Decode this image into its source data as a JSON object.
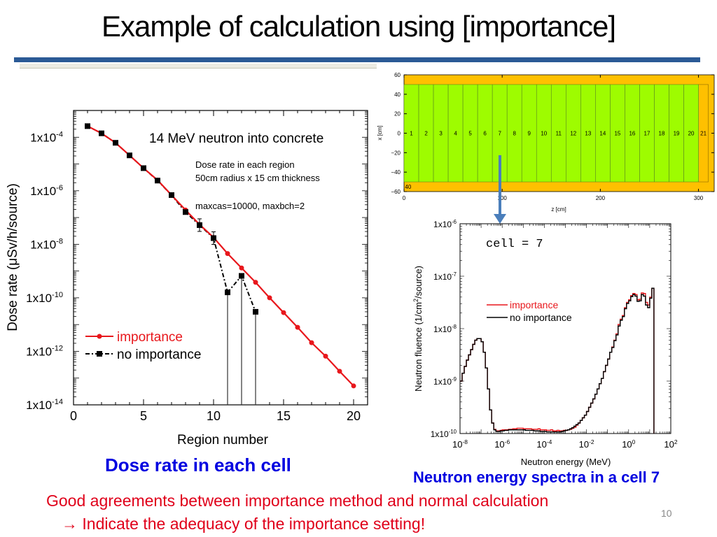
{
  "slide": {
    "title": "Example of calculation using [importance]",
    "page_number": "10",
    "caption_left": "Dose rate in each cell",
    "caption_right": "Neutron energy spectra in a cell 7",
    "conclusion_line1": "Good agreements between importance method and normal calculation",
    "conclusion_line2": "→ Indicate the adequacy of the importance setting!",
    "colors": {
      "title_rule": "#2b5a96",
      "caption": "#0000e0",
      "conclusion": "#e0001a",
      "importance": "#e8171c",
      "no_importance": "#000000"
    }
  },
  "chart_data": [
    {
      "id": "dose",
      "type": "line",
      "title": "14 MeV neutron into concrete",
      "annotations": [
        "Dose rate in each region",
        "50cm radius x 15 cm thickness",
        "maxcas=10000, maxbch=2"
      ],
      "xlabel": "Region number",
      "ylabel": "Dose rate (μSv/h/source)",
      "xlim": [
        0,
        21
      ],
      "ylim": [
        1e-14,
        0.001
      ],
      "yscale": "log",
      "xticks": [
        "0",
        "5",
        "10",
        "15",
        "20"
      ],
      "xtick_values": [
        0,
        5,
        10,
        15,
        20
      ],
      "yticks": [
        {
          "value": 0.0001,
          "base": "1x10",
          "exp": "-4"
        },
        {
          "value": 1e-06,
          "base": "1x10",
          "exp": "-6"
        },
        {
          "value": 1e-08,
          "base": "1x10",
          "exp": "-8"
        },
        {
          "value": 1e-10,
          "base": "1x10",
          "exp": "-10"
        },
        {
          "value": 1e-12,
          "base": "1x10",
          "exp": "-12"
        },
        {
          "value": 1e-14,
          "base": "1x10",
          "exp": "-14"
        }
      ],
      "legend_position": "lower-left",
      "series": [
        {
          "name": "importance",
          "style": "solid-circle",
          "x": [
            1,
            2,
            3,
            4,
            5,
            6,
            7,
            8,
            9,
            10,
            11,
            12,
            13,
            14,
            15,
            16,
            17,
            18,
            19,
            20
          ],
          "y": [
            0.00026,
            0.00014,
            6.2e-05,
            2.1e-05,
            7e-06,
            2.5e-06,
            6.9e-07,
            1.9e-07,
            5.5e-08,
            1.8e-08,
            4.5e-09,
            1.3e-09,
            3.8e-10,
            1e-10,
            2.8e-11,
            7.9e-12,
            2.1e-12,
            6.6e-13,
            1.8e-13,
            5.1e-14
          ]
        },
        {
          "name": "no importance",
          "style": "dashdot-square",
          "x": [
            1,
            2,
            3,
            4,
            5,
            6,
            7,
            8,
            9,
            10,
            11,
            12,
            13
          ],
          "y": [
            0.00026,
            0.00014,
            6.2e-05,
            2.1e-05,
            7e-06,
            2.4e-06,
            6.9e-07,
            1.6e-07,
            5.2e-08,
            1.7e-08,
            1.6e-10,
            6.6e-10,
            3e-11
          ]
        }
      ]
    },
    {
      "id": "geometry",
      "type": "diagram",
      "xlabel": "z [cm]",
      "ylabel": "x [cm]",
      "xlim": [
        0,
        316
      ],
      "ylim": [
        -60,
        60
      ],
      "xticks": [
        "0",
        "100",
        "200",
        "300"
      ],
      "xtick_values": [
        0,
        100,
        200,
        300
      ],
      "yticks": [
        "60",
        "40",
        "20",
        "0",
        "−20",
        "−40",
        "−60"
      ],
      "ytick_values": [
        60,
        40,
        20,
        0,
        -20,
        -40,
        -60
      ],
      "regions": [
        "1",
        "2",
        "3",
        "4",
        "5",
        "6",
        "7",
        "8",
        "9",
        "10",
        "11",
        "12",
        "13",
        "14",
        "15",
        "16",
        "17",
        "18",
        "19",
        "20"
      ],
      "region_thickness_cm": 15,
      "region_radius_cm": 50,
      "back_region": "21",
      "outer_region": "40",
      "colors": {
        "concrete": "#9efc00",
        "void": "#ffc000",
        "border": "#8a6a00"
      },
      "arrow_target_region": "7"
    },
    {
      "id": "spectrum",
      "type": "line",
      "title": "cell = 7",
      "xlabel": "Neutron energy (MeV)",
      "ylabel": "Neutron fluence (1/cm²/source)",
      "xscale": "log",
      "yscale": "log",
      "xlim": [
        1e-08,
        100.0
      ],
      "ylim": [
        1e-10,
        1e-06
      ],
      "xticks": [
        {
          "value": 1e-08,
          "base": "10",
          "exp": "-8"
        },
        {
          "value": 1e-06,
          "base": "10",
          "exp": "-6"
        },
        {
          "value": 0.0001,
          "base": "10",
          "exp": "-4"
        },
        {
          "value": 0.01,
          "base": "10",
          "exp": "-2"
        },
        {
          "value": 1,
          "base": "10",
          "exp": "0"
        },
        {
          "value": 100.0,
          "base": "10",
          "exp": "2"
        }
      ],
      "yticks": [
        {
          "value": 1e-06,
          "base": "1x10",
          "exp": "-6"
        },
        {
          "value": 1e-07,
          "base": "1x10",
          "exp": "-7"
        },
        {
          "value": 1e-08,
          "base": "1x10",
          "exp": "-8"
        },
        {
          "value": 1e-09,
          "base": "1x10",
          "exp": "-9"
        },
        {
          "value": 1e-10,
          "base": "1x10",
          "exp": "-10"
        }
      ],
      "legend_position": "center-left",
      "series": [
        {
          "name": "importance",
          "log_energy_edges_start": -8,
          "bin_width_decades": 0.1,
          "log_values": [
            -9.0,
            -8.85,
            -8.72,
            -8.6,
            -8.5,
            -8.4,
            -8.3,
            -8.22,
            -8.19,
            -8.19,
            -8.25,
            -8.45,
            -8.75,
            -9.15,
            -9.55,
            -9.8,
            -9.92,
            -9.95,
            -9.95,
            -9.94,
            -9.93,
            -9.93,
            -9.93,
            -9.92,
            -9.92,
            -9.91,
            -9.91,
            -9.9,
            -9.9,
            -9.9,
            -9.91,
            -9.91,
            -9.91,
            -9.91,
            -9.92,
            -9.92,
            -9.92,
            -9.91,
            -9.93,
            -9.93,
            -9.93,
            -9.94,
            -9.94,
            -9.93,
            -9.95,
            -9.95,
            -9.94,
            -9.95,
            -9.95,
            -9.94,
            -9.94,
            -9.93,
            -9.92,
            -9.9,
            -9.88,
            -9.84,
            -9.8,
            -9.75,
            -9.7,
            -9.65,
            -9.58,
            -9.5,
            -9.42,
            -9.34,
            -9.25,
            -9.15,
            -9.05,
            -8.95,
            -8.82,
            -8.7,
            -8.58,
            -8.45,
            -8.35,
            -8.22,
            -8.1,
            -7.92,
            -7.82,
            -7.75,
            -7.6,
            -7.5,
            -7.45,
            -7.37,
            -7.33,
            -7.35,
            -7.45,
            -7.44,
            -7.32,
            -7.33,
            -7.5,
            -7.55,
            -7.4,
            -7.23
          ],
          "last_bin_edge_log": 1.2
        },
        {
          "name": "no importance",
          "log_energy_edges_start": -8,
          "bin_width_decades": 0.1,
          "log_values": [
            -9.0,
            -8.85,
            -8.72,
            -8.6,
            -8.5,
            -8.4,
            -8.3,
            -8.22,
            -8.19,
            -8.19,
            -8.25,
            -8.45,
            -8.75,
            -9.15,
            -9.55,
            -9.8,
            -9.93,
            -9.96,
            -9.96,
            -9.95,
            -9.95,
            -9.94,
            -9.94,
            -9.93,
            -9.93,
            -9.93,
            -9.93,
            -9.93,
            -9.93,
            -9.93,
            -9.93,
            -9.94,
            -9.94,
            -9.94,
            -9.94,
            -9.95,
            -9.95,
            -9.95,
            -9.96,
            -9.96,
            -9.96,
            -9.97,
            -9.97,
            -9.97,
            -9.97,
            -9.97,
            -9.97,
            -9.97,
            -9.96,
            -9.95,
            -9.94,
            -9.93,
            -9.91,
            -9.89,
            -9.86,
            -9.83,
            -9.8,
            -9.75,
            -9.7,
            -9.65,
            -9.58,
            -9.5,
            -9.42,
            -9.34,
            -9.25,
            -9.15,
            -9.05,
            -8.95,
            -8.82,
            -8.7,
            -8.58,
            -8.45,
            -8.36,
            -8.23,
            -8.12,
            -7.95,
            -7.84,
            -7.77,
            -7.62,
            -7.52,
            -7.47,
            -7.39,
            -7.35,
            -7.38,
            -7.48,
            -7.47,
            -7.35,
            -7.38,
            -7.55,
            -7.6,
            -7.42,
            -7.23
          ],
          "last_bin_edge_log": 1.2
        }
      ]
    }
  ]
}
